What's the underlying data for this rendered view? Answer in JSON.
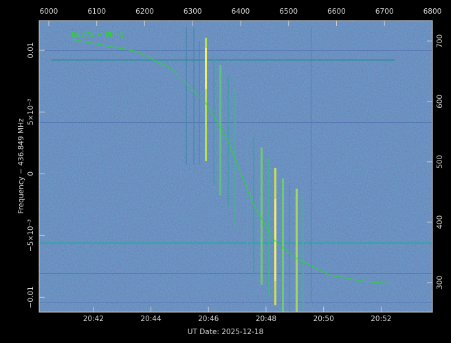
{
  "chart_data": {
    "type": "line",
    "xlabel": "UT Date: 2025-12-18",
    "ylabel": "Frequency − 436.849 MHz",
    "xlim": [
      5980,
      6800
    ],
    "xticks": [
      6000,
      6100,
      6200,
      6300,
      6400,
      6500,
      6600,
      6700,
      6800
    ],
    "x2ticks": [
      {
        "value": 6093,
        "label": "20:42"
      },
      {
        "value": 6213,
        "label": "20:44"
      },
      {
        "value": 6333,
        "label": "20:46"
      },
      {
        "value": 6453,
        "label": "20:48"
      },
      {
        "value": 6573,
        "label": "20:50"
      },
      {
        "value": 6693,
        "label": "20:52"
      }
    ],
    "ylim": [
      -0.0112,
      0.0124
    ],
    "yticks": [
      {
        "value": 0.01,
        "label": "0.01"
      },
      {
        "value": 0.005,
        "label": "5×10⁻³"
      },
      0,
      {
        "value": -0.005,
        "label": "−5×10⁻³"
      },
      {
        "value": -0.01,
        "label": "−0.01"
      }
    ],
    "y2lim": [
      251,
      734
    ],
    "y2ticks": [
      300,
      400,
      500,
      600,
      700
    ],
    "series": [
      {
        "name": "66775 − PHI-1",
        "color": "#22dd22",
        "x": [
          6047,
          6184,
          6256,
          6328,
          6371,
          6399,
          6428,
          6471,
          6514,
          6586,
          6658,
          6716
        ],
        "values": [
          0.0109,
          0.0099,
          0.0085,
          0.0057,
          0.0029,
          0.0002,
          -0.0026,
          -0.0054,
          -0.0068,
          -0.0082,
          -0.0087,
          -0.0089
        ]
      }
    ]
  }
}
